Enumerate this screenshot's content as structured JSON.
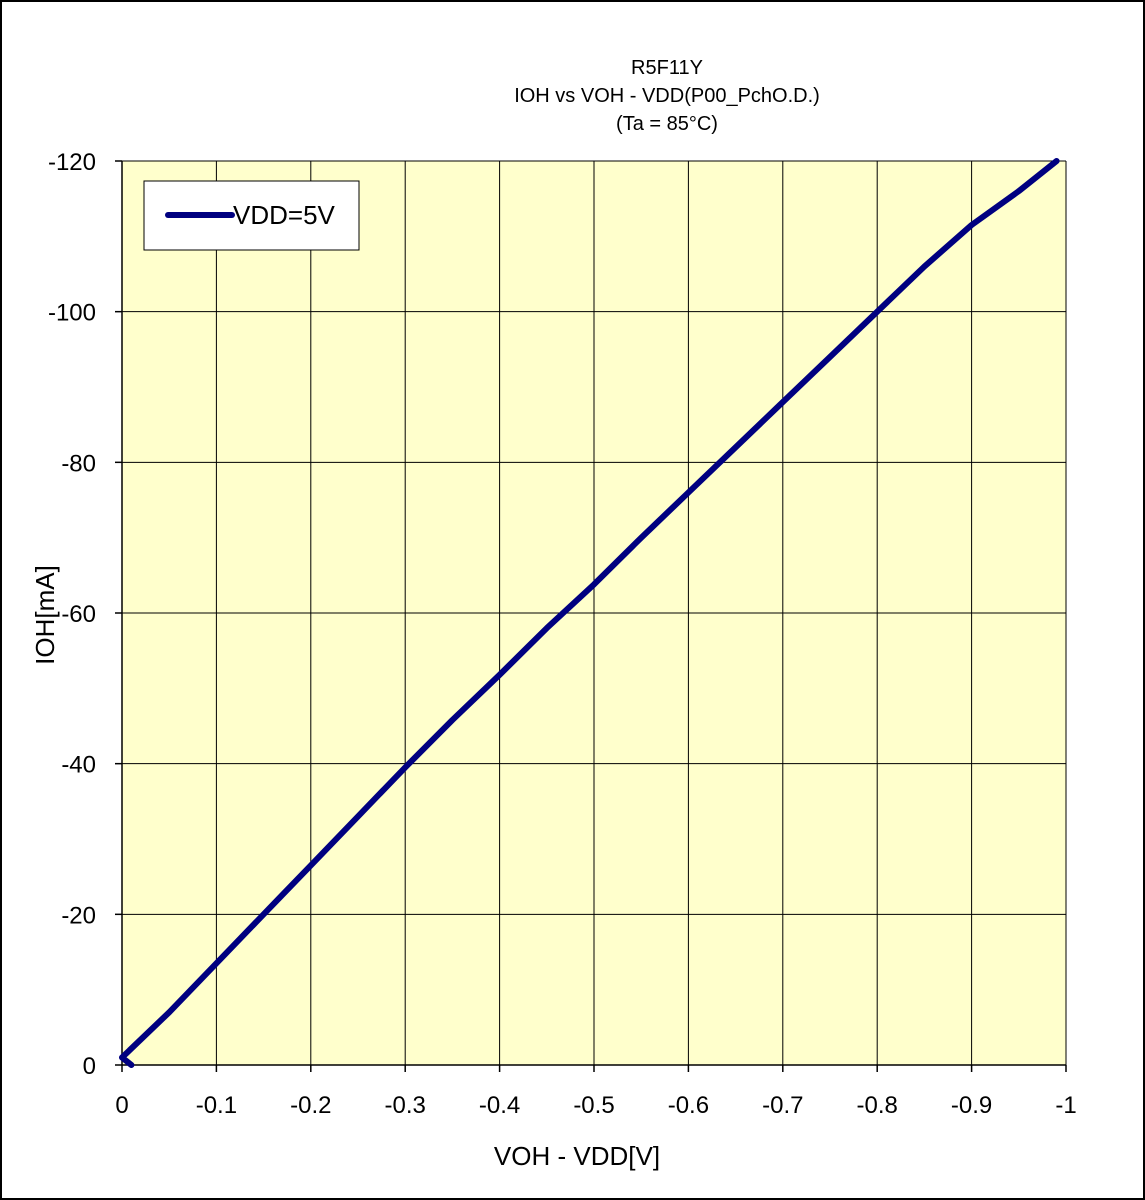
{
  "chart_data": {
    "type": "line",
    "title_lines": [
      "R5F11Y",
      "IOH vs VOH  - VDD(P00_PchO.D.)",
      "(Ta =  85°C)"
    ],
    "xlabel": "VOH - VDD[V]",
    "ylabel": "IOH[mA]",
    "xlim": [
      0,
      -1
    ],
    "ylim": [
      0,
      -120
    ],
    "x_ticks": [
      0,
      -0.1,
      -0.2,
      -0.3,
      -0.4,
      -0.5,
      -0.6,
      -0.7,
      -0.8,
      -0.9,
      -1
    ],
    "x_tick_labels": [
      "0",
      "-0.1",
      "-0.2",
      "-0.3",
      "-0.4",
      "-0.5",
      "-0.6",
      "-0.7",
      "-0.8",
      "-0.9",
      "-1"
    ],
    "y_ticks": [
      0,
      -20,
      -40,
      -60,
      -80,
      -100,
      -120
    ],
    "y_tick_labels": [
      "0",
      "-20",
      "-40",
      "-60",
      "-80",
      "-100",
      "-120"
    ],
    "grid": true,
    "legend_position": "top-left",
    "plot_background": "#FFFFCC",
    "series": [
      {
        "name": "VDD=5V",
        "color": "#000080",
        "x": [
          -0.01,
          0,
          -0.05,
          -0.1,
          -0.15,
          -0.2,
          -0.25,
          -0.3,
          -0.35,
          -0.4,
          -0.45,
          -0.5,
          -0.55,
          -0.6,
          -0.65,
          -0.7,
          -0.75,
          -0.8,
          -0.85,
          -0.9,
          -0.95,
          -0.99
        ],
        "y": [
          0,
          -1,
          -7,
          -13.5,
          -20,
          -26.5,
          -33,
          -39.5,
          -45.8,
          -51.8,
          -58,
          -63.8,
          -70,
          -76,
          -82,
          -88,
          -94,
          -100,
          -106,
          -111.5,
          -116,
          -120
        ]
      }
    ]
  }
}
